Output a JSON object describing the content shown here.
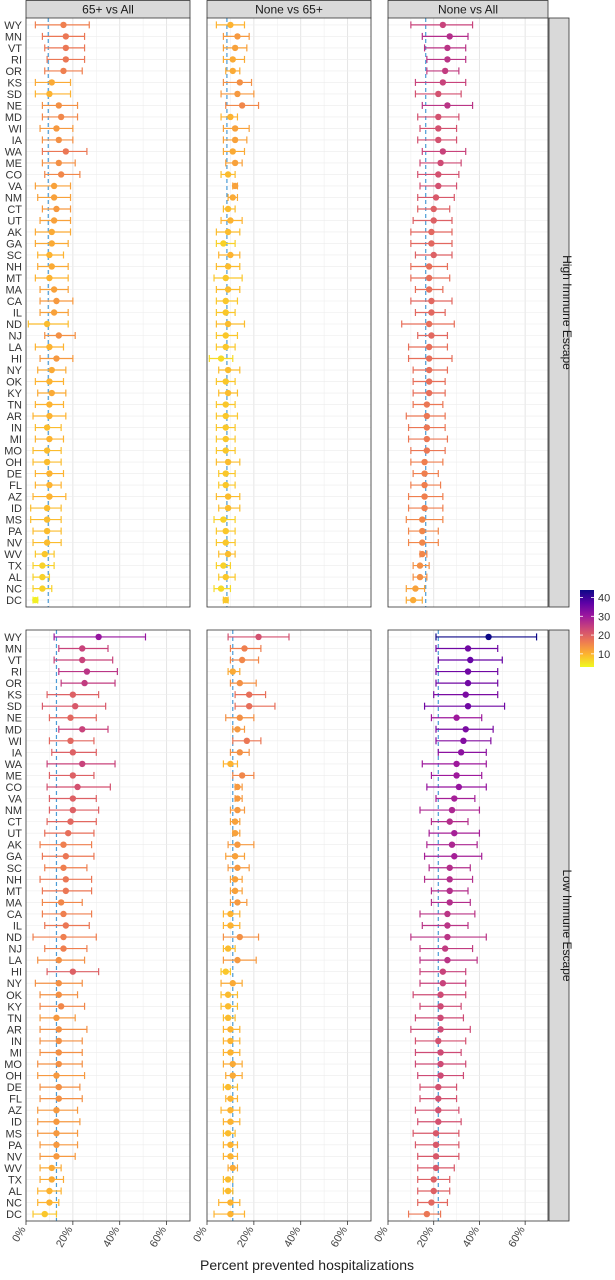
{
  "chart_data": {
    "type": "scatter",
    "xlabel": "Percent prevented hospitalizations",
    "x_ticks": [
      "0%",
      "20%",
      "40%",
      "60%"
    ],
    "xlim": [
      0,
      70
    ],
    "columns": [
      "65+ vs All",
      "None vs 65+",
      "None vs All"
    ],
    "rows": [
      "High Immune Escape",
      "Low Immune Escape"
    ],
    "states": [
      "WY",
      "MN",
      "VT",
      "RI",
      "OR",
      "KS",
      "SD",
      "NE",
      "MD",
      "WI",
      "IA",
      "WA",
      "ME",
      "CO",
      "VA",
      "NM",
      "CT",
      "UT",
      "AK",
      "GA",
      "SC",
      "NH",
      "MT",
      "MA",
      "CA",
      "IL",
      "ND",
      "NJ",
      "LA",
      "HI",
      "NY",
      "OK",
      "KY",
      "TN",
      "AR",
      "IN",
      "MI",
      "MO",
      "OH",
      "DE",
      "FL",
      "AZ",
      "ID",
      "MS",
      "PA",
      "NV",
      "WV",
      "TX",
      "AL",
      "NC",
      "DC"
    ],
    "reference_lines": {
      "High Immune Escape": {
        "65+ vs All": 9.5,
        "None vs 65+": 8.5,
        "None vs All": 16.5
      },
      "Low Immune Escape": {
        "65+ vs All": 13,
        "None vs 65+": 11,
        "None vs All": 22
      }
    },
    "color_scale": {
      "min": 3,
      "max": 44,
      "ticks": [
        "10",
        "20",
        "30",
        "40"
      ],
      "stops": [
        "#f0f921",
        "#fdb42f",
        "#ed7953",
        "#cc4778",
        "#9c179e",
        "#5c01a6",
        "#0d0887"
      ]
    },
    "series": [
      {
        "panel": "High Immune Escape | 65+ vs All",
        "center": [
          16,
          17,
          17,
          17,
          16,
          11,
          10,
          14,
          15,
          13,
          14,
          17,
          14,
          15,
          12,
          12,
          13,
          12,
          11,
          11,
          10,
          11,
          10,
          12,
          13,
          12,
          9,
          14,
          10,
          13,
          11,
          10,
          11,
          10,
          10,
          9,
          10,
          9,
          9,
          10,
          10,
          10,
          9,
          9,
          9,
          9,
          8,
          7,
          7,
          7,
          4
        ],
        "lower": [
          4,
          7,
          8,
          9,
          8,
          4,
          4,
          7,
          7,
          6,
          7,
          7,
          7,
          8,
          4,
          5,
          7,
          6,
          4,
          4,
          5,
          5,
          4,
          6,
          6,
          6,
          1,
          8,
          4,
          6,
          5,
          4,
          5,
          4,
          3,
          4,
          4,
          3,
          3,
          4,
          4,
          3,
          2,
          2,
          3,
          3,
          4,
          3,
          3,
          3,
          3
        ],
        "upper": [
          27,
          25,
          25,
          25,
          24,
          19,
          19,
          22,
          22,
          20,
          20,
          26,
          21,
          23,
          19,
          19,
          19,
          19,
          19,
          18,
          16,
          18,
          18,
          18,
          20,
          18,
          18,
          21,
          16,
          20,
          17,
          16,
          17,
          16,
          17,
          15,
          16,
          15,
          15,
          16,
          15,
          17,
          15,
          15,
          15,
          15,
          12,
          12,
          10,
          11,
          5
        ]
      },
      {
        "panel": "High Immune Escape | None vs 65+",
        "center": [
          10,
          13,
          12,
          11,
          11,
          14,
          13,
          15,
          10,
          12,
          12,
          11,
          12,
          9,
          12,
          11,
          9,
          10,
          9,
          7,
          10,
          9,
          8,
          9,
          8,
          8,
          9,
          8,
          8,
          6,
          9,
          8,
          9,
          8,
          8,
          8,
          8,
          8,
          9,
          8,
          8,
          9,
          9,
          7,
          8,
          8,
          9,
          7,
          8,
          6,
          8
        ],
        "lower": [
          4,
          7,
          7,
          7,
          8,
          7,
          6,
          8,
          6,
          7,
          7,
          7,
          8,
          6,
          11,
          9,
          7,
          6,
          4,
          4,
          5,
          4,
          3,
          4,
          4,
          4,
          4,
          4,
          4,
          1,
          5,
          4,
          5,
          4,
          4,
          4,
          4,
          4,
          4,
          5,
          5,
          4,
          5,
          3,
          4,
          4,
          5,
          4,
          5,
          3,
          7
        ],
        "upper": [
          16,
          18,
          17,
          16,
          14,
          19,
          20,
          22,
          13,
          18,
          17,
          16,
          15,
          12,
          13,
          13,
          12,
          15,
          14,
          12,
          14,
          14,
          15,
          14,
          13,
          12,
          16,
          13,
          12,
          11,
          14,
          12,
          13,
          12,
          13,
          12,
          12,
          12,
          14,
          12,
          12,
          14,
          14,
          12,
          12,
          12,
          12,
          10,
          12,
          10,
          9
        ]
      },
      {
        "panel": "High Immune Escape | None vs All",
        "center": [
          24,
          27,
          26,
          26,
          25,
          24,
          22,
          26,
          22,
          22,
          22,
          24,
          23,
          22,
          22,
          21,
          20,
          20,
          19,
          19,
          20,
          18,
          18,
          18,
          19,
          19,
          18,
          19,
          18,
          18,
          18,
          18,
          18,
          17,
          17,
          17,
          17,
          17,
          16,
          16,
          16,
          16,
          16,
          15,
          15,
          15,
          15,
          14,
          14,
          12,
          11
        ],
        "lower": [
          10,
          15,
          16,
          17,
          17,
          12,
          12,
          15,
          13,
          14,
          13,
          15,
          14,
          13,
          14,
          13,
          13,
          11,
          10,
          10,
          12,
          10,
          10,
          12,
          10,
          12,
          6,
          13,
          9,
          9,
          11,
          11,
          11,
          11,
          8,
          9,
          9,
          10,
          10,
          11,
          10,
          9,
          9,
          8,
          9,
          9,
          14,
          11,
          11,
          8,
          8
        ],
        "upper": [
          37,
          35,
          34,
          34,
          31,
          34,
          32,
          37,
          31,
          30,
          30,
          34,
          32,
          31,
          30,
          29,
          27,
          28,
          28,
          28,
          28,
          26,
          27,
          24,
          28,
          25,
          29,
          26,
          26,
          28,
          26,
          25,
          25,
          24,
          25,
          25,
          26,
          25,
          24,
          22,
          23,
          24,
          24,
          24,
          22,
          22,
          17,
          18,
          17,
          16,
          15
        ]
      },
      {
        "panel": "Low Immune Escape | 65+ vs All",
        "center": [
          31,
          24,
          24,
          26,
          25,
          20,
          21,
          19,
          24,
          19,
          20,
          24,
          20,
          22,
          20,
          20,
          19,
          18,
          16,
          17,
          16,
          17,
          17,
          15,
          16,
          17,
          16,
          16,
          14,
          20,
          14,
          14,
          15,
          13,
          14,
          14,
          14,
          14,
          13,
          14,
          14,
          13,
          13,
          13,
          13,
          13,
          11,
          11,
          10,
          10,
          8
        ],
        "lower": [
          12,
          14,
          12,
          14,
          15,
          9,
          7,
          10,
          14,
          10,
          11,
          9,
          10,
          9,
          10,
          10,
          9,
          8,
          6,
          7,
          8,
          6,
          7,
          7,
          7,
          8,
          3,
          8,
          5,
          9,
          4,
          6,
          6,
          6,
          6,
          6,
          6,
          5,
          5,
          6,
          6,
          5,
          5,
          5,
          6,
          6,
          6,
          6,
          5,
          5,
          3
        ],
        "upper": [
          51,
          35,
          37,
          39,
          38,
          31,
          34,
          30,
          35,
          29,
          30,
          38,
          29,
          36,
          30,
          31,
          30,
          29,
          28,
          29,
          26,
          28,
          28,
          24,
          28,
          27,
          30,
          26,
          25,
          31,
          24,
          22,
          25,
          21,
          26,
          24,
          24,
          24,
          25,
          23,
          24,
          22,
          23,
          22,
          22,
          21,
          15,
          16,
          15,
          14,
          13
        ]
      },
      {
        "panel": "Low Immune Escape | None vs 65+",
        "center": [
          22,
          16,
          15,
          11,
          14,
          18,
          18,
          14,
          13,
          17,
          14,
          10,
          15,
          13,
          13,
          13,
          12,
          12,
          13,
          12,
          13,
          12,
          12,
          13,
          10,
          10,
          14,
          9,
          13,
          8,
          11,
          9,
          9,
          9,
          10,
          10,
          10,
          11,
          11,
          9,
          10,
          10,
          10,
          9,
          10,
          10,
          11,
          9,
          9,
          10,
          10
        ],
        "lower": [
          9,
          10,
          10,
          9,
          10,
          12,
          12,
          8,
          11,
          11,
          10,
          7,
          11,
          12,
          12,
          10,
          10,
          11,
          9,
          8,
          9,
          10,
          10,
          10,
          7,
          7,
          7,
          7,
          7,
          6,
          6,
          6,
          6,
          7,
          7,
          7,
          7,
          7,
          8,
          7,
          8,
          6,
          7,
          7,
          7,
          7,
          9,
          7,
          7,
          5,
          3
        ],
        "upper": [
          35,
          23,
          22,
          14,
          21,
          25,
          29,
          20,
          16,
          23,
          18,
          13,
          20,
          15,
          15,
          16,
          14,
          14,
          20,
          16,
          18,
          15,
          15,
          17,
          14,
          14,
          22,
          12,
          21,
          10,
          15,
          13,
          13,
          12,
          14,
          14,
          14,
          15,
          15,
          13,
          13,
          14,
          14,
          12,
          13,
          13,
          13,
          11,
          11,
          14,
          16
        ]
      },
      {
        "panel": "Low Immune Escape | None vs All",
        "center": [
          44,
          35,
          36,
          35,
          35,
          34,
          35,
          30,
          34,
          33,
          32,
          30,
          30,
          31,
          29,
          28,
          27,
          29,
          28,
          29,
          27,
          27,
          27,
          27,
          26,
          26,
          26,
          25,
          26,
          24,
          24,
          23,
          23,
          23,
          23,
          22,
          23,
          23,
          23,
          22,
          22,
          22,
          22,
          21,
          21,
          21,
          21,
          20,
          20,
          19,
          17
        ],
        "lower": [
          21,
          21,
          22,
          21,
          21,
          20,
          16,
          19,
          21,
          21,
          22,
          15,
          19,
          17,
          21,
          14,
          19,
          18,
          17,
          16,
          18,
          16,
          19,
          19,
          14,
          15,
          10,
          14,
          14,
          14,
          14,
          11,
          14,
          12,
          10,
          12,
          12,
          12,
          13,
          14,
          14,
          12,
          13,
          11,
          12,
          13,
          13,
          13,
          13,
          13,
          9
        ],
        "upper": [
          65,
          48,
          50,
          48,
          48,
          48,
          51,
          41,
          46,
          45,
          43,
          43,
          41,
          43,
          38,
          40,
          35,
          40,
          39,
          41,
          36,
          37,
          35,
          36,
          38,
          35,
          43,
          37,
          39,
          34,
          34,
          34,
          32,
          33,
          36,
          34,
          32,
          34,
          33,
          30,
          30,
          31,
          32,
          31,
          31,
          31,
          29,
          27,
          27,
          26,
          23
        ]
      }
    ]
  }
}
